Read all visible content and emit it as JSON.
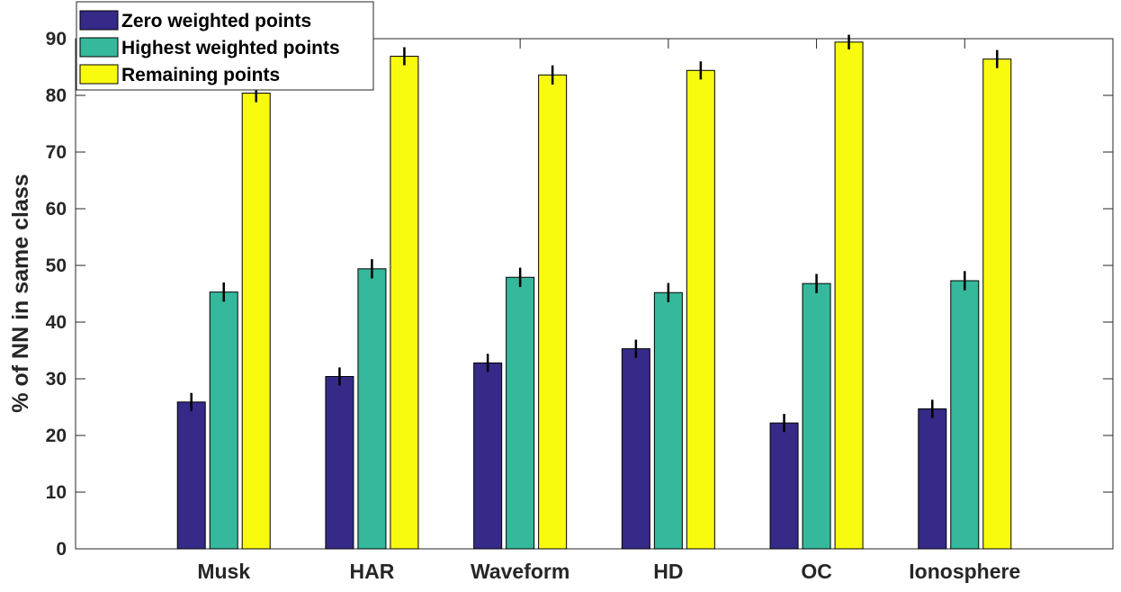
{
  "chart_data": {
    "type": "bar",
    "title": "",
    "xlabel": "",
    "ylabel": "% of NN in same class",
    "ylim": [
      0,
      90
    ],
    "yticks": [
      0,
      10,
      20,
      30,
      40,
      50,
      60,
      70,
      80,
      90
    ],
    "xlim": [
      0,
      7
    ],
    "categories": [
      "Musk",
      "HAR",
      "Waveform",
      "HD",
      "OC",
      "Ionosphere"
    ],
    "series": [
      {
        "name": "Zero weighted points",
        "color": "#352a87",
        "values": [
          25.9,
          30.4,
          32.8,
          35.3,
          22.2,
          24.7
        ],
        "errors": [
          1.6,
          1.6,
          1.6,
          1.6,
          1.6,
          1.6
        ]
      },
      {
        "name": "Highest weighted points",
        "color": "#35b89b",
        "values": [
          45.3,
          49.4,
          47.9,
          45.2,
          46.8,
          47.3
        ],
        "errors": [
          1.7,
          1.7,
          1.7,
          1.7,
          1.7,
          1.7
        ]
      },
      {
        "name": "Remaining points",
        "color": "#f9fb0e",
        "values": [
          80.4,
          86.9,
          83.6,
          84.4,
          89.4,
          86.4
        ],
        "errors": [
          1.6,
          1.6,
          1.7,
          1.6,
          1.3,
          1.6
        ]
      }
    ],
    "grid": false,
    "legend_position": "top-left"
  }
}
